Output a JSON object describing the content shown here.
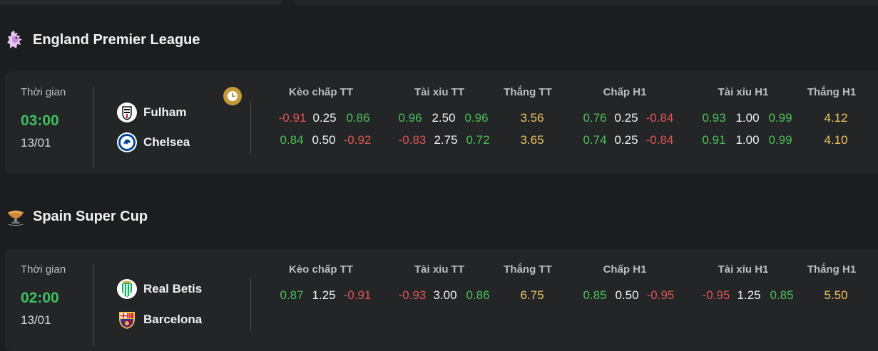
{
  "colors": {
    "positive": "#4cc05a",
    "negative": "#e05555",
    "win": "#f0c25e",
    "time": "#3fbf62"
  },
  "column_headers": [
    "Kèo chấp TT",
    "Tài xỉu TT",
    "Thắng TT",
    "Chấp H1",
    "Tài xỉu H1",
    "Thắng H1"
  ],
  "leagues": [
    {
      "name": "England Premier League",
      "logo_icon": "premier-league-lion-icon",
      "match": {
        "time_label": "Thời gian",
        "time": "03:00",
        "date": "13/01",
        "home": {
          "name": "Fulham",
          "logo_icon": "fulham-crest-icon"
        },
        "away": {
          "name": "Chelsea",
          "logo_icon": "chelsea-crest-icon"
        },
        "rows": [
          {
            "handicap_ft": [
              "-0.91",
              "0.25",
              "0.86"
            ],
            "ou_ft": [
              "0.96",
              "2.50",
              "0.96"
            ],
            "win_ft": "3.56",
            "handicap_h1": [
              "0.76",
              "0.25",
              "-0.84"
            ],
            "ou_h1": [
              "0.93",
              "1.00",
              "0.99"
            ],
            "win_h1": "4.12"
          },
          {
            "handicap_ft": [
              "0.84",
              "0.50",
              "-0.92"
            ],
            "ou_ft": [
              "-0.83",
              "2.75",
              "0.72"
            ],
            "win_ft": "3.65",
            "handicap_h1": [
              "0.74",
              "0.25",
              "-0.84"
            ],
            "ou_h1": [
              "0.91",
              "1.00",
              "0.99"
            ],
            "win_h1": "4.10"
          }
        ]
      }
    },
    {
      "name": "Spain Super Cup",
      "logo_icon": "super-cup-trophy-icon",
      "match": {
        "time_label": "Thời gian",
        "time": "02:00",
        "date": "13/01",
        "home": {
          "name": "Real Betis",
          "logo_icon": "real-betis-crest-icon"
        },
        "away": {
          "name": "Barcelona",
          "logo_icon": "barcelona-crest-icon"
        },
        "rows": [
          {
            "handicap_ft": [
              "0.87",
              "1.25",
              "-0.91"
            ],
            "ou_ft": [
              "-0.93",
              "3.00",
              "0.86"
            ],
            "win_ft": "6.75",
            "handicap_h1": [
              "0.85",
              "0.50",
              "-0.95"
            ],
            "ou_h1": [
              "-0.95",
              "1.25",
              "0.85"
            ],
            "win_h1": "5.50"
          }
        ]
      }
    }
  ]
}
